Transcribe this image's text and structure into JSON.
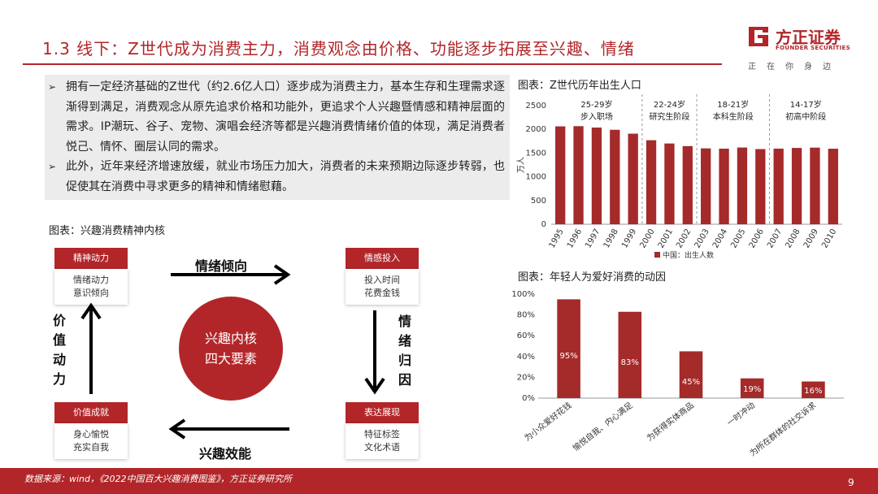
{
  "header": {
    "title": "1.3 线下：Z世代成为消费主力，消费观念由价格、功能逐步拓展至兴趣、情绪",
    "logo_cn": "方正证券",
    "logo_en": "FOUNDER SECURITIES",
    "logo_sub": "正在你身边"
  },
  "bullets": [
    "拥有一定经济基础的Z世代（约2.6亿人口）逐步成为消费主力，基本生存和生理需求逐渐得到满足，消费观念从原先追求价格和功能外，更追求个人兴趣暨情感和精神层面的需求。IP潮玩、谷子、宠物、演唱会经济等都是兴趣消费情绪价值的体现，满足消费者悦己、情怀、圈层认同的需求。",
    "此外，近年来经济增速放缓，就业市场压力加大，消费者的未来预期边际逐步转弱，也促使其在消费中寻求更多的精神和情绪慰藉。"
  ],
  "diagram": {
    "caption": "图表：兴趣消费精神内核",
    "center": [
      "兴趣内核",
      "四大要素"
    ],
    "cards": {
      "tl": {
        "title": "精神动力",
        "lines": [
          "情绪动力",
          "意识倾向"
        ]
      },
      "tr": {
        "title": "情感投入",
        "lines": [
          "投入时间",
          "花费金钱"
        ]
      },
      "bl": {
        "title": "价值成就",
        "lines": [
          "身心愉悦",
          "充实自我"
        ]
      },
      "br": {
        "title": "表达展现",
        "lines": [
          "特征标签",
          "文化术语"
        ]
      }
    },
    "arrow_top": "情绪倾向",
    "arrow_bottom": "兴趣效能",
    "arrow_left": [
      "价",
      "值",
      "动",
      "力"
    ],
    "arrow_right": [
      "情",
      "绪",
      "归",
      "因"
    ]
  },
  "chart1_caption": "图表：Z世代历年出生人口",
  "chart2_caption": "图表：年轻人为爱好消费的动因",
  "chart_data": [
    {
      "type": "bar",
      "categories": [
        "1995",
        "1996",
        "1997",
        "1998",
        "1999",
        "2000",
        "2001",
        "2002",
        "2003",
        "2004",
        "2005",
        "2006",
        "2007",
        "2008",
        "2009",
        "2010"
      ],
      "series": [
        {
          "name": "中国：出生人数",
          "values": [
            2063,
            2067,
            2038,
            1991,
            1909,
            1771,
            1702,
            1647,
            1599,
            1593,
            1617,
            1584,
            1594,
            1608,
            1615,
            1592
          ]
        }
      ],
      "ylabel": "万人",
      "ylim": [
        0,
        2500
      ],
      "yticks": [
        "0",
        "500",
        "1000",
        "1500",
        "2000",
        "2500"
      ],
      "groups": [
        {
          "age": "25-29岁",
          "stage": "步入职场"
        },
        {
          "age": "22-24岁",
          "stage": "研究生阶段"
        },
        {
          "age": "18-21岁",
          "stage": "本科生阶段"
        },
        {
          "age": "14-17岁",
          "stage": "初高中阶段"
        }
      ],
      "legend": "bottom",
      "color": "#a52a2a"
    },
    {
      "type": "bar",
      "categories": [
        "为小众爱好花钱",
        "愉悦自我、内心满足",
        "为获得实体商品",
        "一时冲动",
        "为所在群体的社交诉求"
      ],
      "values": [
        95,
        83,
        45,
        19,
        16
      ],
      "labels": [
        "95%",
        "83%",
        "45%",
        "19%",
        "16%"
      ],
      "ylim": [
        0,
        100
      ],
      "yticks": [
        "0%",
        "20%",
        "40%",
        "60%",
        "80%",
        "100%"
      ],
      "color": "#a52a2a"
    }
  ],
  "footer": {
    "source": "数据来源：wind，《2022中国百大兴趣消费图鉴》，方正证券研究所",
    "page": "9"
  },
  "colors": {
    "brand": "#b2262a",
    "bar": "#a52a2a"
  }
}
